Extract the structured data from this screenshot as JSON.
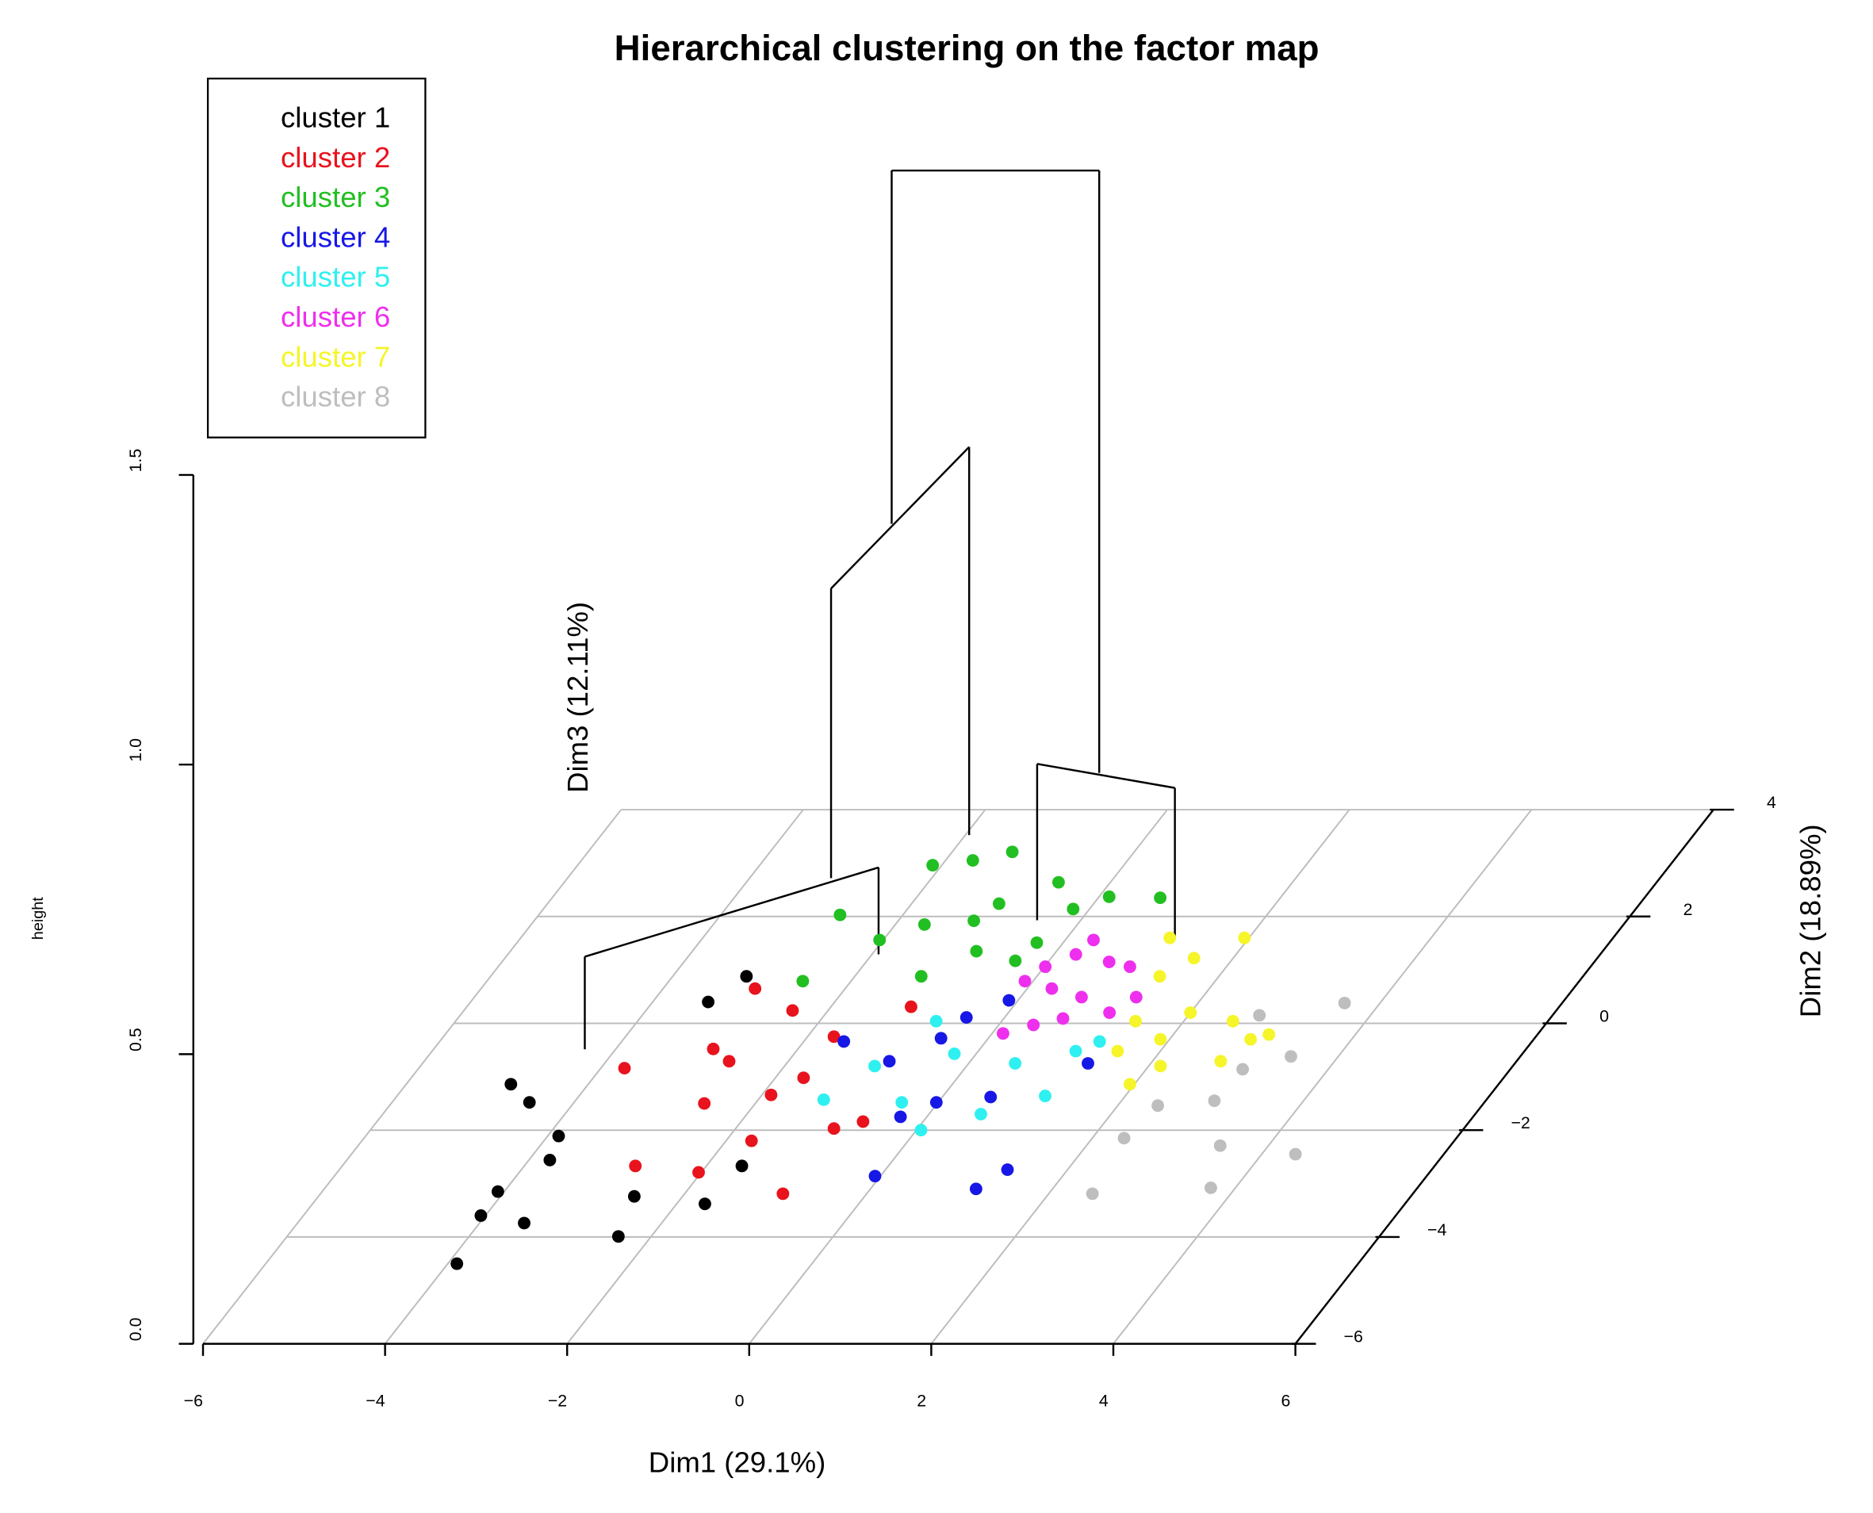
{
  "chart_data": {
    "type": "scatter3d",
    "title": "Hierarchical clustering on the factor map",
    "x_label": "Dim1 (29.1%)",
    "y_label": "Dim2 (18.89%)",
    "z_label": "Dim3 (12.11%)",
    "height_label": "height",
    "xlim": [
      -6,
      6
    ],
    "ylim": [
      -6,
      4
    ],
    "zlim": [
      0,
      1.5
    ],
    "xticks": [
      {
        "value": -6,
        "label": "−6"
      },
      {
        "value": -4,
        "label": "−4"
      },
      {
        "value": -2,
        "label": "−2"
      },
      0,
      2,
      4,
      6
    ],
    "yticks": [
      {
        "value": -6,
        "label": "−6"
      },
      {
        "value": -4,
        "label": "−4"
      },
      {
        "value": -2,
        "label": "−2"
      },
      0,
      2,
      4
    ],
    "zticks": [
      {
        "value": 0,
        "label": "0.0"
      },
      0.5,
      {
        "value": 1,
        "label": "1.0"
      },
      1.5
    ],
    "grid": true,
    "legend": "top-left",
    "series": [
      {
        "name": "cluster 1",
        "color": "#000000",
        "x": [
          -3.9,
          -4.05,
          -4.07,
          -3.51,
          -4.49,
          -4.85,
          -3.77,
          -3.88,
          -2.36,
          -2.53,
          -1.69,
          -1.61,
          -3.39,
          -3.19
        ],
        "y": [
          -4.5,
          -3.6,
          -3.15,
          -3.74,
          -1.48,
          -1.14,
          -2.56,
          -2.11,
          -3.99,
          -3.24,
          -3.38,
          -2.67,
          0.4,
          0.88
        ]
      },
      {
        "name": "cluster 2",
        "color": "#e8131d",
        "x": [
          -3.74,
          -2.78,
          -2.03,
          -2.56,
          -2.93,
          -2.65,
          -1.72,
          -0.92,
          -1.9,
          -0.92,
          -0.66,
          -1.69,
          -2.99,
          -2.39,
          -1.71,
          -1.12
        ],
        "y": [
          -0.84,
          -2.67,
          -2.79,
          -1.5,
          -0.48,
          -0.71,
          -2.2,
          -3.19,
          -1.34,
          -1.97,
          -1.84,
          -1.02,
          0.65,
          0.24,
          -0.25,
          0.31
        ]
      },
      {
        "name": "cluster 3",
        "color": "#22bf22",
        "x": [
          -2.1,
          -1.7,
          -1.34,
          -2.69,
          -2.04,
          -1.68,
          -1.17,
          -1.04,
          -0.57,
          -0.18,
          0.11,
          0.68,
          -0.37,
          -0.88,
          -2.53,
          -1.27,
          -0.29
        ],
        "y": [
          2.96,
          3.05,
          3.21,
          2.03,
          1.56,
          1.85,
          1.92,
          2.24,
          2.64,
          2.14,
          2.37,
          2.35,
          1.17,
          1.35,
          0.79,
          0.88,
          1.51
        ]
      },
      {
        "name": "cluster 4",
        "color": "#1717e6",
        "x": [
          -0.06,
          1.16,
          1.34,
          -0.29,
          -0.02,
          0.53,
          -1.56,
          -0.89,
          -0.52,
          -0.42,
          -0.1,
          1.31
        ],
        "y": [
          -2.86,
          -3.1,
          -2.74,
          -1.75,
          -1.48,
          -1.38,
          -0.34,
          -0.71,
          -0.28,
          0.11,
          0.43,
          -0.75
        ]
      },
      {
        "name": "cluster 5",
        "color": "#2ff0f0",
        "x": [
          -1.28,
          0.05,
          -0.4,
          0.57,
          1.12,
          -1.01,
          -0.24,
          0.51,
          1.07,
          1.25,
          -0.72
        ],
        "y": [
          -1.43,
          -2.0,
          -1.48,
          -1.7,
          -1.36,
          -0.8,
          -0.57,
          -0.75,
          -0.52,
          -0.34,
          0.04
        ]
      },
      {
        "name": "cluster 6",
        "color": "#ee2fee",
        "x": [
          0.31,
          0.67,
          0.24,
          0.01,
          -0.09,
          0.27,
          0.67,
          1.11,
          0.65,
          0.38,
          0.12,
          1.27,
          0.94
        ],
        "y": [
          1.56,
          1.15,
          1.29,
          1.06,
          0.79,
          0.65,
          0.49,
          0.2,
          0.09,
          -0.03,
          -0.19,
          0.49,
          1.06
        ]
      },
      {
        "name": "cluster 7",
        "color": "#f5f52a",
        "x": [
          1.13,
          1.95,
          1.57,
          1.35,
          2.0,
          1.9,
          1.47,
          1.53,
          2.13,
          2.75,
          2.89,
          3.05,
          2.54,
          1.95
        ],
        "y": [
          1.6,
          1.6,
          1.22,
          0.88,
          0.2,
          -0.3,
          0.04,
          -0.52,
          -0.8,
          -0.71,
          -0.3,
          -0.21,
          0.04,
          -1.14
        ]
      },
      {
        "name": "cluster 8",
        "color": "#bebebe",
        "x": [
          2.48,
          3.73,
          4.37,
          3.47,
          2.35,
          2.44,
          3.02,
          3.48,
          3.61,
          2.78,
          3.06
        ],
        "y": [
          -3.19,
          -3.08,
          -2.45,
          -2.29,
          -2.15,
          -1.54,
          -1.45,
          -0.62,
          0.38,
          0.15,
          -0.86
        ]
      }
    ],
    "dendrogram": [
      {
        "height": 1.38,
        "legs": [
          [
            -1.65,
            1,
            0.77
          ],
          [
            0.63,
            1,
            0.34
          ]
        ]
      },
      {
        "height": 0.77,
        "legs": [
          [
            -1.76,
            -0.21,
            0.27
          ],
          [
            -1.46,
            2.44,
            0.1
          ]
        ]
      },
      {
        "height": 0.34,
        "legs": [
          [
            -0.13,
            1.17,
            0.07
          ],
          [
            1.59,
            0.72,
            0.08
          ]
        ]
      },
      {
        "height": 0.27,
        "legs": [
          [
            -3.79,
            -1.68,
            0.11
          ],
          [
            -1.33,
            -0.01,
            0.12
          ]
        ]
      }
    ]
  }
}
